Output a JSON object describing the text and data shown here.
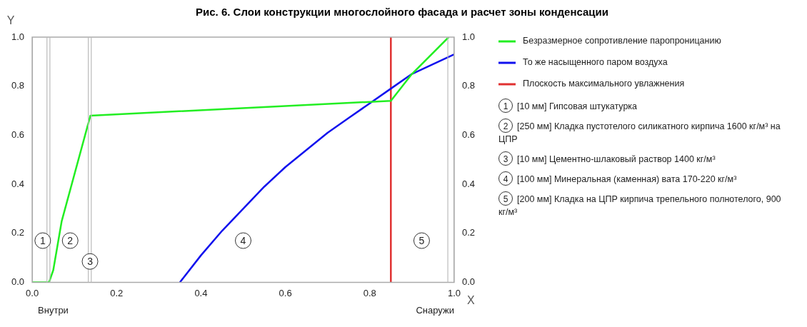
{
  "chart_data": {
    "type": "line",
    "title": "Рис. 6. Слои конструкции многослойного фасада и расчет зоны конденсации",
    "xlabel": "X",
    "ylabel": "Y",
    "xlim": [
      0,
      1
    ],
    "ylim": [
      0,
      1
    ],
    "y2lim": [
      0,
      1
    ],
    "xticks": [
      {
        "value": 0,
        "label": "0.0"
      },
      {
        "value": 0.2,
        "label": "0.2"
      },
      {
        "value": 0.4,
        "label": "0.4"
      },
      {
        "value": 0.6,
        "label": "0.6"
      },
      {
        "value": 0.8,
        "label": "0.8"
      },
      {
        "value": 1,
        "label": "1.0"
      }
    ],
    "yticks": [
      {
        "value": 0,
        "label": "0.0"
      },
      {
        "value": 0.2,
        "label": "0.2"
      },
      {
        "value": 0.4,
        "label": "0.4"
      },
      {
        "value": 0.6,
        "label": "0.6"
      },
      {
        "value": 0.8,
        "label": "0.8"
      },
      {
        "value": 1,
        "label": "1.0"
      }
    ],
    "y2ticks": [
      {
        "value": 0,
        "label": "0.0"
      },
      {
        "value": 0.2,
        "label": "0.2"
      },
      {
        "value": 0.4,
        "label": "0.4"
      },
      {
        "value": 0.6,
        "label": "0.6"
      },
      {
        "value": 0.8,
        "label": "0.8"
      },
      {
        "value": 1,
        "label": "1.0"
      }
    ],
    "series": [
      {
        "name": "Безразмерное сопротивление паропроницанию",
        "color": "#22ee22",
        "x": [
          0,
          0.04,
          0.05,
          0.07,
          0.138,
          0.85,
          0.9,
          0.987
        ],
        "values": [
          0,
          0,
          0.05,
          0.25,
          0.68,
          0.74,
          0.85,
          1
        ]
      },
      {
        "name": "То же насыщенного паром воздуха",
        "color": "#1010ee",
        "x": [
          0.35,
          0.4,
          0.45,
          0.5,
          0.55,
          0.6,
          0.65,
          0.7,
          0.75,
          0.8,
          0.85,
          0.9,
          0.95,
          1
        ],
        "values": [
          0,
          0.11,
          0.21,
          0.3,
          0.39,
          0.47,
          0.54,
          0.61,
          0.67,
          0.73,
          0.79,
          0.85,
          0.89,
          0.93
        ]
      },
      {
        "name": "Плоскость максимального увлажнения",
        "color": "#e03030",
        "x": [
          0.85,
          0.85
        ],
        "values": [
          0,
          1
        ]
      }
    ],
    "ref_lines": [
      {
        "axis": "x",
        "value": 0.035,
        "color": "#bbbbbb"
      },
      {
        "axis": "x",
        "value": 0.042,
        "color": "#bbbbbb"
      },
      {
        "axis": "x",
        "value": 0.133,
        "color": "#bbbbbb"
      },
      {
        "axis": "x",
        "value": 0.14,
        "color": "#bbbbbb"
      },
      {
        "axis": "x",
        "value": 0.985,
        "color": "#bbbbbb"
      }
    ],
    "annotations": [
      {
        "text": "1",
        "x": 0.025,
        "y": 0.17
      },
      {
        "text": "2",
        "x": 0.09,
        "y": 0.17
      },
      {
        "text": "3",
        "x": 0.137,
        "y": 0.085
      },
      {
        "text": "4",
        "x": 0.5,
        "y": 0.17
      },
      {
        "text": "5",
        "x": 0.923,
        "y": 0.17
      },
      "Внутри",
      "Снаружи",
      "[10 мм] Гипсовая штукатурка",
      "[250 мм] Кладка пустотелого силикатного кирпича 1600 кг/м³ на ЦПР",
      "[10 мм] Цементно-шлаковый раствор 1400 кг/м³",
      "[100 мм] Минеральная (каменная) вата 170-220 кг/м³",
      "[200 мм] Кладка на ЦПР кирпича трепельного полнотелого, 900 кг/м³"
    ],
    "grid": false,
    "legend": "right",
    "marker": "none",
    "line_style": "solid"
  }
}
